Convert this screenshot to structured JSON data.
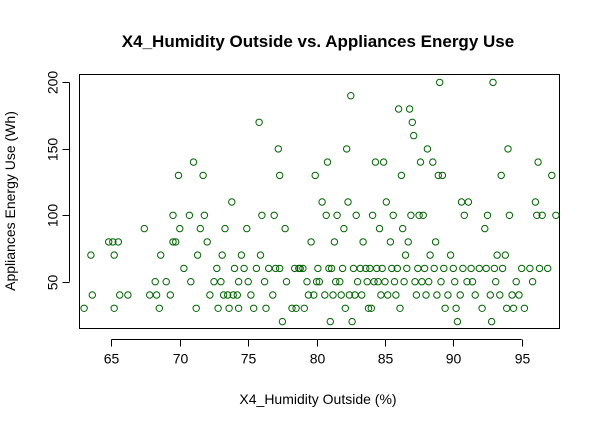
{
  "chart_data": {
    "type": "scatter",
    "title": "X4_Humidity Outside vs. Appliances Energy Use",
    "xlabel": "X4_Humidity Outside (%)",
    "ylabel": "Appliances Energy Use (Wh)",
    "xlim": [
      62.7,
      97.8
    ],
    "ylim": [
      14.4,
      205.6
    ],
    "xticks": [
      65,
      70,
      75,
      80,
      85,
      90,
      95
    ],
    "yticks": [
      50,
      100,
      150,
      200
    ],
    "xtick_labels": [
      "65",
      "70",
      "75",
      "80",
      "85",
      "90",
      "95"
    ],
    "ytick_labels": [
      "50",
      "100",
      "150",
      "200"
    ],
    "grid": false,
    "legend": "none",
    "marker": "open-circle",
    "color": "#006400",
    "points": [
      [
        63.0,
        30
      ],
      [
        63.5,
        70
      ],
      [
        63.6,
        40
      ],
      [
        64.8,
        80
      ],
      [
        65.1,
        80
      ],
      [
        65.2,
        70
      ],
      [
        65.2,
        30
      ],
      [
        65.5,
        80
      ],
      [
        65.6,
        40
      ],
      [
        66.2,
        40
      ],
      [
        67.4,
        90
      ],
      [
        67.8,
        40
      ],
      [
        68.2,
        50
      ],
      [
        68.3,
        40
      ],
      [
        68.5,
        30
      ],
      [
        68.6,
        70
      ],
      [
        69.0,
        50
      ],
      [
        69.3,
        40
      ],
      [
        69.5,
        100
      ],
      [
        69.5,
        80
      ],
      [
        69.7,
        80
      ],
      [
        69.9,
        130
      ],
      [
        70.0,
        90
      ],
      [
        70.3,
        60
      ],
      [
        70.7,
        100
      ],
      [
        70.8,
        50
      ],
      [
        71.0,
        140
      ],
      [
        71.2,
        30
      ],
      [
        71.3,
        70
      ],
      [
        71.5,
        90
      ],
      [
        71.7,
        130
      ],
      [
        71.8,
        100
      ],
      [
        72.0,
        80
      ],
      [
        72.2,
        40
      ],
      [
        72.5,
        50
      ],
      [
        72.7,
        60
      ],
      [
        72.8,
        30
      ],
      [
        73.0,
        50
      ],
      [
        73.1,
        70
      ],
      [
        73.2,
        40
      ],
      [
        73.3,
        90
      ],
      [
        73.5,
        40
      ],
      [
        73.6,
        30
      ],
      [
        73.8,
        110
      ],
      [
        73.9,
        40
      ],
      [
        74.0,
        60
      ],
      [
        74.2,
        40
      ],
      [
        74.3,
        50
      ],
      [
        74.3,
        30
      ],
      [
        74.5,
        70
      ],
      [
        74.7,
        60
      ],
      [
        74.9,
        90
      ],
      [
        75.0,
        50
      ],
      [
        75.2,
        40
      ],
      [
        75.4,
        30
      ],
      [
        75.6,
        60
      ],
      [
        75.8,
        170
      ],
      [
        75.9,
        70
      ],
      [
        76.0,
        100
      ],
      [
        76.2,
        50
      ],
      [
        76.3,
        30
      ],
      [
        76.5,
        60
      ],
      [
        76.8,
        40
      ],
      [
        76.9,
        100
      ],
      [
        77.0,
        60
      ],
      [
        77.2,
        150
      ],
      [
        77.3,
        130
      ],
      [
        77.3,
        60
      ],
      [
        77.5,
        20
      ],
      [
        77.7,
        90
      ],
      [
        77.8,
        50
      ],
      [
        78.2,
        30
      ],
      [
        78.4,
        60
      ],
      [
        78.5,
        30
      ],
      [
        78.7,
        60
      ],
      [
        78.8,
        60
      ],
      [
        79.0,
        60
      ],
      [
        79.1,
        30
      ],
      [
        79.3,
        50
      ],
      [
        79.4,
        40
      ],
      [
        79.6,
        80
      ],
      [
        79.8,
        40
      ],
      [
        79.9,
        130
      ],
      [
        80.0,
        50
      ],
      [
        80.1,
        60
      ],
      [
        80.2,
        50
      ],
      [
        80.4,
        110
      ],
      [
        80.6,
        40
      ],
      [
        80.7,
        100
      ],
      [
        80.8,
        140
      ],
      [
        80.9,
        60
      ],
      [
        81.0,
        20
      ],
      [
        81.1,
        60
      ],
      [
        81.2,
        40
      ],
      [
        81.3,
        80
      ],
      [
        81.4,
        50
      ],
      [
        81.5,
        100
      ],
      [
        81.7,
        50
      ],
      [
        81.8,
        40
      ],
      [
        81.9,
        60
      ],
      [
        82.0,
        90
      ],
      [
        82.1,
        30
      ],
      [
        82.2,
        150
      ],
      [
        82.3,
        110
      ],
      [
        82.4,
        40
      ],
      [
        82.5,
        190
      ],
      [
        82.6,
        20
      ],
      [
        82.7,
        60
      ],
      [
        82.8,
        40
      ],
      [
        82.9,
        100
      ],
      [
        83.0,
        50
      ],
      [
        83.2,
        60
      ],
      [
        83.3,
        40
      ],
      [
        83.4,
        80
      ],
      [
        83.6,
        60
      ],
      [
        83.7,
        50
      ],
      [
        83.8,
        30
      ],
      [
        83.9,
        60
      ],
      [
        84.0,
        30
      ],
      [
        84.1,
        100
      ],
      [
        84.2,
        50
      ],
      [
        84.3,
        140
      ],
      [
        84.4,
        60
      ],
      [
        84.5,
        50
      ],
      [
        84.6,
        90
      ],
      [
        84.7,
        40
      ],
      [
        84.8,
        60
      ],
      [
        84.9,
        140
      ],
      [
        85.0,
        50
      ],
      [
        85.1,
        110
      ],
      [
        85.2,
        40
      ],
      [
        85.4,
        80
      ],
      [
        85.5,
        60
      ],
      [
        85.6,
        100
      ],
      [
        85.7,
        50
      ],
      [
        85.8,
        40
      ],
      [
        85.9,
        60
      ],
      [
        86.0,
        180
      ],
      [
        86.1,
        30
      ],
      [
        86.2,
        130
      ],
      [
        86.3,
        90
      ],
      [
        86.4,
        50
      ],
      [
        86.5,
        70
      ],
      [
        86.6,
        60
      ],
      [
        86.7,
        80
      ],
      [
        86.8,
        180
      ],
      [
        86.9,
        100
      ],
      [
        87.0,
        170
      ],
      [
        87.1,
        160
      ],
      [
        87.2,
        50
      ],
      [
        87.3,
        40
      ],
      [
        87.4,
        60
      ],
      [
        87.5,
        100
      ],
      [
        87.6,
        140
      ],
      [
        87.7,
        50
      ],
      [
        87.8,
        100
      ],
      [
        87.9,
        60
      ],
      [
        88.0,
        40
      ],
      [
        88.1,
        150
      ],
      [
        88.2,
        50
      ],
      [
        88.3,
        70
      ],
      [
        88.5,
        140
      ],
      [
        88.6,
        60
      ],
      [
        88.7,
        80
      ],
      [
        88.8,
        40
      ],
      [
        88.9,
        130
      ],
      [
        89.0,
        200
      ],
      [
        89.1,
        50
      ],
      [
        89.2,
        130
      ],
      [
        89.3,
        60
      ],
      [
        89.4,
        30
      ],
      [
        89.6,
        40
      ],
      [
        89.8,
        70
      ],
      [
        90.0,
        60
      ],
      [
        90.1,
        50
      ],
      [
        90.2,
        30
      ],
      [
        90.3,
        20
      ],
      [
        90.5,
        40
      ],
      [
        90.6,
        110
      ],
      [
        90.7,
        60
      ],
      [
        90.8,
        100
      ],
      [
        91.0,
        50
      ],
      [
        91.1,
        110
      ],
      [
        91.3,
        60
      ],
      [
        91.4,
        50
      ],
      [
        91.6,
        40
      ],
      [
        91.9,
        60
      ],
      [
        92.1,
        30
      ],
      [
        92.3,
        90
      ],
      [
        92.4,
        60
      ],
      [
        92.5,
        100
      ],
      [
        92.7,
        40
      ],
      [
        92.8,
        20
      ],
      [
        92.9,
        200
      ],
      [
        93.0,
        60
      ],
      [
        93.1,
        50
      ],
      [
        93.2,
        70
      ],
      [
        93.4,
        40
      ],
      [
        93.5,
        130
      ],
      [
        93.6,
        60
      ],
      [
        93.8,
        70
      ],
      [
        93.9,
        30
      ],
      [
        94.0,
        150
      ],
      [
        94.1,
        100
      ],
      [
        94.3,
        40
      ],
      [
        94.4,
        30
      ],
      [
        94.6,
        50
      ],
      [
        94.8,
        40
      ],
      [
        95.0,
        60
      ],
      [
        95.2,
        30
      ],
      [
        95.6,
        60
      ],
      [
        95.8,
        50
      ],
      [
        96.0,
        110
      ],
      [
        96.1,
        100
      ],
      [
        96.2,
        140
      ],
      [
        96.3,
        60
      ],
      [
        96.5,
        100
      ],
      [
        96.9,
        60
      ],
      [
        97.2,
        130
      ],
      [
        97.5,
        100
      ]
    ]
  }
}
